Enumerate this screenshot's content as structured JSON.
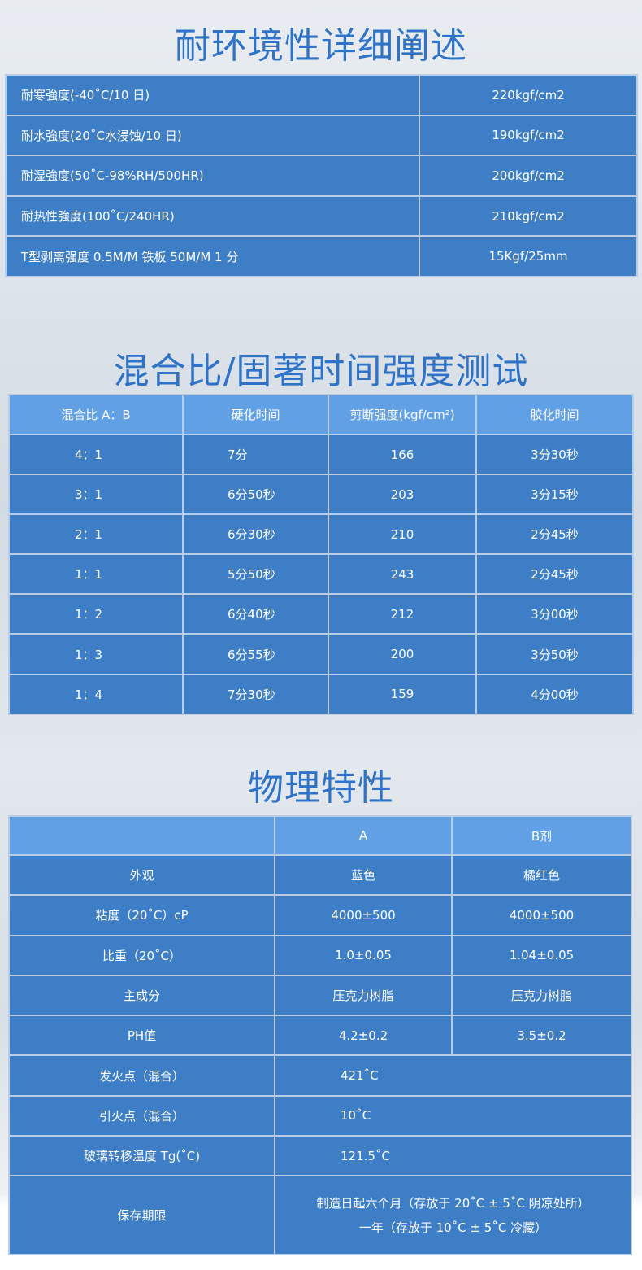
{
  "env": {
    "title": "耐环境性详细阐述",
    "rows": [
      {
        "label": "耐寒強度(-40˚C/10 日)",
        "value": "220kgf/cm2"
      },
      {
        "label": "耐水強度(20˚C水浸蚀/10 日)",
        "value": "190kgf/cm2"
      },
      {
        "label": "耐湿強度(50˚C-98%RH/500HR)",
        "value": "200kgf/cm2"
      },
      {
        "label": "耐热性強度(100˚C/240HR)",
        "value": "210kgf/cm2"
      },
      {
        "label": "T型剥离强度 0.5M/M 铁板 50M/M 1 分",
        "value": "15Kgf/25mm"
      }
    ]
  },
  "mix": {
    "title": "混合比/固著时间强度测试",
    "headers": [
      "混合比 A：B",
      "硬化时间",
      "剪断强度(kgf/cm²)",
      "胶化时间"
    ],
    "rows": [
      [
        "4：1",
        "7分",
        "166",
        "3分30秒"
      ],
      [
        "3：1",
        "6分50秒",
        "203",
        "3分15秒"
      ],
      [
        "2：1",
        "6分30秒",
        "210",
        "2分45秒"
      ],
      [
        "1：1",
        "5分50秒",
        "243",
        "2分45秒"
      ],
      [
        "1：2",
        "6分40秒",
        "212",
        "3分00秒"
      ],
      [
        "1：3",
        "6分55秒",
        "200",
        "3分50秒"
      ],
      [
        "1：4",
        "7分30秒",
        "159",
        "4分00秒"
      ]
    ]
  },
  "phys": {
    "title": "物理特性",
    "headers": [
      "",
      "A",
      "B剂"
    ],
    "rows": [
      [
        "外观",
        "蓝色",
        "橘红色"
      ],
      [
        "粘度（20˚C）cP",
        "4000±500",
        "4000±500"
      ],
      [
        "比重（20˚C）",
        "1.0±0.05",
        "1.04±0.05"
      ],
      [
        "主成分",
        "压克力树脂",
        "压克力树脂"
      ],
      [
        "PH值",
        "4.2±0.2",
        "3.5±0.2"
      ]
    ],
    "mixed": [
      [
        "发火点（混合）",
        "421˚C"
      ],
      [
        "引火点（混合）",
        "10˚C"
      ],
      [
        "玻璃转移温度 Tg(˚C)",
        "121.5˚C"
      ]
    ],
    "storage": {
      "label": "保存期限",
      "line1": "制造日起六个月（存放于 20˚C ± 5˚C 阴凉处所）",
      "line2": "一年（存放于 10˚C ± 5˚C 冷藏）"
    }
  },
  "colors": {
    "cell": "#3d7ec6",
    "header": "#62a0e6",
    "title": "#2f73c8"
  }
}
